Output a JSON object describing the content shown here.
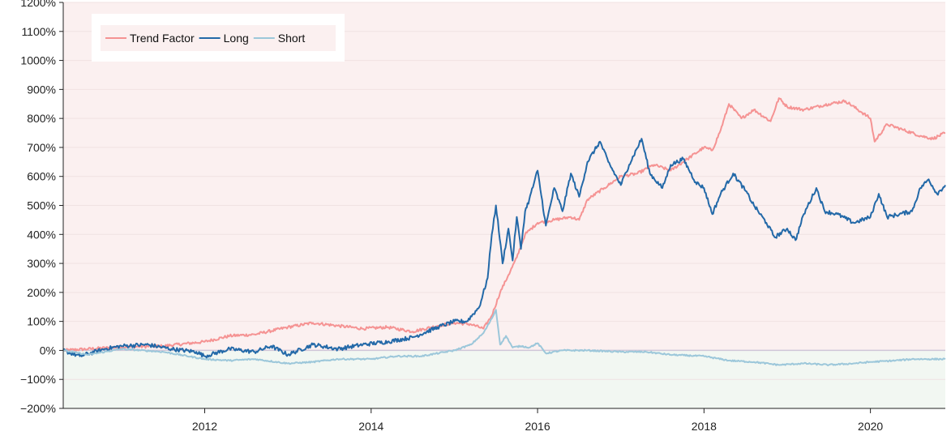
{
  "chart_data": {
    "type": "line",
    "title": "",
    "xlabel": "",
    "ylabel": "",
    "xlim": [
      2010.3,
      2020.9
    ],
    "ylim": [
      -200,
      1200
    ],
    "x_ticks": [
      2012,
      2014,
      2016,
      2018,
      2020
    ],
    "x_tick_labels": [
      "2012",
      "2014",
      "2016",
      "2018",
      "2020"
    ],
    "y_ticks": [
      -200,
      -100,
      0,
      100,
      200,
      300,
      400,
      500,
      600,
      700,
      800,
      900,
      1000,
      1100,
      1200
    ],
    "y_tick_labels": [
      "−200%",
      "−100%",
      "0%",
      "100%",
      "200%",
      "300%",
      "400%",
      "500%",
      "600%",
      "700%",
      "800%",
      "900%",
      "1000%",
      "1100%",
      "1200%"
    ],
    "grid": true,
    "legend_position": "top-left",
    "colors": {
      "positive_region": "#fbf0f0",
      "negative_region": "#f2f7f2",
      "gridline": "#f0e2e2",
      "zero_line": "#cfc6d8",
      "axis": "#222222"
    },
    "series": [
      {
        "name": "Trend Factor",
        "color": "#f59393",
        "points": [
          [
            2010.3,
            0
          ],
          [
            2010.6,
            5
          ],
          [
            2011.0,
            12
          ],
          [
            2011.5,
            15
          ],
          [
            2012.0,
            30
          ],
          [
            2012.3,
            50
          ],
          [
            2012.6,
            55
          ],
          [
            2013.0,
            80
          ],
          [
            2013.3,
            95
          ],
          [
            2013.6,
            85
          ],
          [
            2013.9,
            75
          ],
          [
            2014.2,
            80
          ],
          [
            2014.5,
            65
          ],
          [
            2014.8,
            85
          ],
          [
            2015.0,
            95
          ],
          [
            2015.2,
            90
          ],
          [
            2015.35,
            75
          ],
          [
            2015.45,
            120
          ],
          [
            2015.55,
            200
          ],
          [
            2015.65,
            260
          ],
          [
            2015.75,
            320
          ],
          [
            2015.85,
            400
          ],
          [
            2016.0,
            440
          ],
          [
            2016.2,
            450
          ],
          [
            2016.4,
            460
          ],
          [
            2016.5,
            450
          ],
          [
            2016.6,
            520
          ],
          [
            2016.8,
            560
          ],
          [
            2017.0,
            600
          ],
          [
            2017.2,
            610
          ],
          [
            2017.4,
            640
          ],
          [
            2017.6,
            620
          ],
          [
            2017.8,
            660
          ],
          [
            2018.0,
            700
          ],
          [
            2018.1,
            690
          ],
          [
            2018.2,
            760
          ],
          [
            2018.3,
            850
          ],
          [
            2018.45,
            800
          ],
          [
            2018.6,
            830
          ],
          [
            2018.8,
            790
          ],
          [
            2018.9,
            870
          ],
          [
            2019.0,
            840
          ],
          [
            2019.2,
            830
          ],
          [
            2019.5,
            850
          ],
          [
            2019.7,
            860
          ],
          [
            2019.9,
            820
          ],
          [
            2020.0,
            800
          ],
          [
            2020.05,
            720
          ],
          [
            2020.2,
            780
          ],
          [
            2020.4,
            760
          ],
          [
            2020.6,
            740
          ],
          [
            2020.75,
            730
          ],
          [
            2020.9,
            750
          ]
        ]
      },
      {
        "name": "Long",
        "color": "#2369a8",
        "points": [
          [
            2010.3,
            0
          ],
          [
            2010.5,
            -20
          ],
          [
            2010.8,
            5
          ],
          [
            2011.0,
            15
          ],
          [
            2011.3,
            20
          ],
          [
            2011.6,
            5
          ],
          [
            2011.9,
            -5
          ],
          [
            2012.0,
            -20
          ],
          [
            2012.3,
            5
          ],
          [
            2012.6,
            -5
          ],
          [
            2012.8,
            15
          ],
          [
            2013.0,
            -15
          ],
          [
            2013.3,
            20
          ],
          [
            2013.6,
            5
          ],
          [
            2013.9,
            20
          ],
          [
            2014.2,
            30
          ],
          [
            2014.5,
            45
          ],
          [
            2014.8,
            80
          ],
          [
            2015.0,
            100
          ],
          [
            2015.15,
            100
          ],
          [
            2015.3,
            150
          ],
          [
            2015.4,
            250
          ],
          [
            2015.45,
            400
          ],
          [
            2015.5,
            500
          ],
          [
            2015.58,
            300
          ],
          [
            2015.65,
            420
          ],
          [
            2015.7,
            310
          ],
          [
            2015.75,
            460
          ],
          [
            2015.8,
            350
          ],
          [
            2015.85,
            480
          ],
          [
            2015.9,
            520
          ],
          [
            2016.0,
            620
          ],
          [
            2016.1,
            430
          ],
          [
            2016.2,
            560
          ],
          [
            2016.3,
            480
          ],
          [
            2016.4,
            610
          ],
          [
            2016.5,
            530
          ],
          [
            2016.6,
            650
          ],
          [
            2016.75,
            720
          ],
          [
            2016.85,
            650
          ],
          [
            2017.0,
            570
          ],
          [
            2017.1,
            640
          ],
          [
            2017.25,
            730
          ],
          [
            2017.35,
            610
          ],
          [
            2017.5,
            560
          ],
          [
            2017.6,
            640
          ],
          [
            2017.75,
            660
          ],
          [
            2017.9,
            580
          ],
          [
            2018.0,
            560
          ],
          [
            2018.1,
            470
          ],
          [
            2018.2,
            540
          ],
          [
            2018.35,
            610
          ],
          [
            2018.5,
            550
          ],
          [
            2018.6,
            500
          ],
          [
            2018.75,
            440
          ],
          [
            2018.85,
            390
          ],
          [
            2019.0,
            420
          ],
          [
            2019.1,
            380
          ],
          [
            2019.2,
            470
          ],
          [
            2019.35,
            560
          ],
          [
            2019.45,
            480
          ],
          [
            2019.6,
            470
          ],
          [
            2019.8,
            440
          ],
          [
            2020.0,
            460
          ],
          [
            2020.1,
            540
          ],
          [
            2020.2,
            460
          ],
          [
            2020.35,
            470
          ],
          [
            2020.5,
            480
          ],
          [
            2020.6,
            560
          ],
          [
            2020.7,
            590
          ],
          [
            2020.8,
            540
          ],
          [
            2020.9,
            570
          ]
        ]
      },
      {
        "name": "Short",
        "color": "#9cc7da",
        "points": [
          [
            2010.3,
            0
          ],
          [
            2010.6,
            -15
          ],
          [
            2011.0,
            5
          ],
          [
            2011.5,
            -5
          ],
          [
            2012.0,
            -30
          ],
          [
            2012.3,
            -35
          ],
          [
            2012.6,
            -30
          ],
          [
            2013.0,
            -45
          ],
          [
            2013.3,
            -40
          ],
          [
            2013.6,
            -30
          ],
          [
            2014.0,
            -30
          ],
          [
            2014.3,
            -20
          ],
          [
            2014.6,
            -20
          ],
          [
            2015.0,
            0
          ],
          [
            2015.2,
            20
          ],
          [
            2015.35,
            60
          ],
          [
            2015.45,
            110
          ],
          [
            2015.5,
            140
          ],
          [
            2015.55,
            20
          ],
          [
            2015.62,
            50
          ],
          [
            2015.7,
            10
          ],
          [
            2015.8,
            15
          ],
          [
            2015.9,
            10
          ],
          [
            2016.0,
            25
          ],
          [
            2016.1,
            -10
          ],
          [
            2016.3,
            0
          ],
          [
            2016.6,
            0
          ],
          [
            2017.0,
            -5
          ],
          [
            2017.3,
            -5
          ],
          [
            2017.6,
            -15
          ],
          [
            2018.0,
            -20
          ],
          [
            2018.3,
            -35
          ],
          [
            2018.6,
            -40
          ],
          [
            2018.9,
            -50
          ],
          [
            2019.2,
            -45
          ],
          [
            2019.5,
            -50
          ],
          [
            2019.8,
            -45
          ],
          [
            2020.0,
            -40
          ],
          [
            2020.3,
            -35
          ],
          [
            2020.5,
            -30
          ],
          [
            2020.6,
            -30
          ],
          [
            2020.9,
            -30
          ]
        ]
      }
    ]
  }
}
